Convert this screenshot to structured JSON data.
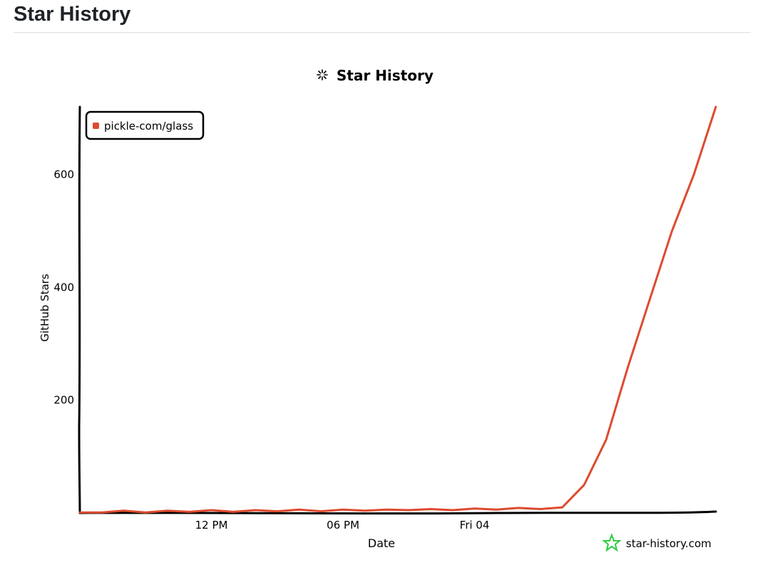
{
  "page": {
    "heading": "Star History"
  },
  "chart_data": {
    "type": "line",
    "title": "Star History",
    "xlabel": "Date",
    "ylabel": "GitHub Stars",
    "x_ticks": [
      "12 PM",
      "06 PM",
      "Fri 04"
    ],
    "y_ticks": [
      200,
      400,
      600
    ],
    "ylim": [
      0,
      720
    ],
    "grid": false,
    "legend_position": "top-left",
    "series": [
      {
        "name": "pickle-com/glass",
        "color": "#dd4b2f",
        "points": [
          [
            "Thu 03 06:00",
            0
          ],
          [
            "Thu 03 07:00",
            2
          ],
          [
            "Thu 03 08:00",
            3
          ],
          [
            "Thu 03 09:00",
            2
          ],
          [
            "Thu 03 10:00",
            3
          ],
          [
            "Thu 03 11:00",
            3
          ],
          [
            "Thu 03 12:00",
            4
          ],
          [
            "Thu 03 13:00",
            3
          ],
          [
            "Thu 03 14:00",
            4
          ],
          [
            "Thu 03 15:00",
            4
          ],
          [
            "Thu 03 16:00",
            5
          ],
          [
            "Thu 03 17:00",
            4
          ],
          [
            "Thu 03 18:00",
            5
          ],
          [
            "Thu 03 19:00",
            5
          ],
          [
            "Thu 03 20:00",
            5
          ],
          [
            "Thu 03 21:00",
            6
          ],
          [
            "Thu 03 22:00",
            6
          ],
          [
            "Thu 03 23:00",
            6
          ],
          [
            "Fri 04 00:00",
            7
          ],
          [
            "Fri 04 01:00",
            7
          ],
          [
            "Fri 04 02:00",
            8
          ],
          [
            "Fri 04 03:00",
            8
          ],
          [
            "Fri 04 04:00",
            9
          ],
          [
            "Fri 04 05:00",
            50
          ],
          [
            "Fri 04 06:00",
            130
          ],
          [
            "Fri 04 07:00",
            260
          ],
          [
            "Fri 04 08:00",
            380
          ],
          [
            "Fri 04 09:00",
            500
          ],
          [
            "Fri 04 10:00",
            600
          ],
          [
            "Fri 04 11:00",
            720
          ]
        ]
      }
    ],
    "watermark": "star-history.com",
    "icons": {
      "title_icon": "sparkle-icon",
      "watermark_icon": "star-outline-icon"
    },
    "colors": {
      "axis": "#000000",
      "watermark_icon": "#2ecc40"
    }
  }
}
